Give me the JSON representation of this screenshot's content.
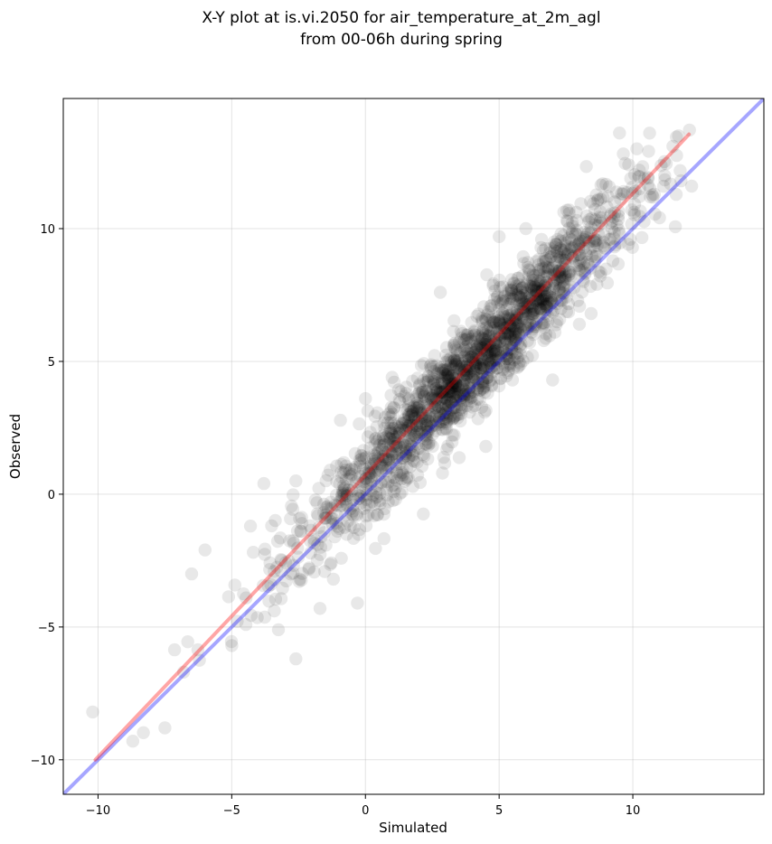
{
  "chart_data": {
    "type": "scatter",
    "title_lines": [
      "X-Y plot at is.vi.2050 for air_temperature_at_2m_agl",
      "from 00-06h during spring"
    ],
    "xlabel": "Simulated",
    "ylabel": "Observed",
    "xlim": [
      -11.3,
      14.9
    ],
    "ylim": [
      -11.3,
      14.9
    ],
    "xticks": [
      -10,
      -5,
      0,
      5,
      10
    ],
    "yticks": [
      -10,
      -5,
      0,
      5,
      10
    ],
    "xtick_labels": [
      "−10",
      "−5",
      "0",
      "5",
      "10"
    ],
    "ytick_labels": [
      "−10",
      "−5",
      "0",
      "5",
      "10"
    ],
    "grid": true,
    "scatter": {
      "color": "#000000",
      "opacity": 0.09,
      "count": 1800,
      "x_range": [
        -10.2,
        12.2
      ],
      "approx_relation": "observed ≈ 1.05 × simulated + 0.6, spread ≈ ±0.9",
      "sample_points": [
        [
          -10.2,
          -8.2
        ],
        [
          -8.7,
          -9.3
        ],
        [
          -7.5,
          -8.8
        ],
        [
          -6.8,
          -6.7
        ],
        [
          -6.5,
          -3.0
        ],
        [
          -6.0,
          -2.1
        ],
        [
          -5.0,
          -5.7
        ],
        [
          -4.3,
          -1.2
        ],
        [
          -3.8,
          0.4
        ],
        [
          -2.6,
          0.5
        ],
        [
          -2.6,
          -6.2
        ],
        [
          -1.7,
          -4.3
        ],
        [
          -1.2,
          -3.2
        ],
        [
          -0.3,
          -4.1
        ],
        [
          0.0,
          3.6
        ],
        [
          1.0,
          4.4
        ],
        [
          2.8,
          7.6
        ],
        [
          4.5,
          1.8
        ],
        [
          5.0,
          9.7
        ],
        [
          5.5,
          4.3
        ],
        [
          6.0,
          10.0
        ],
        [
          7.0,
          4.3
        ],
        [
          8.0,
          6.4
        ],
        [
          9.5,
          13.6
        ],
        [
          9.9,
          9.6
        ],
        [
          11.8,
          11.8
        ],
        [
          12.2,
          11.6
        ],
        [
          11.5,
          13.1
        ]
      ]
    },
    "series": [
      {
        "color": "#0000ff",
        "kind": "1:1 line",
        "x": [
          -11.3,
          14.9
        ],
        "y": [
          -11.3,
          14.9
        ]
      },
      {
        "color": "#ff0000",
        "kind": "regression line",
        "x": [
          -10.1,
          12.1
        ],
        "y": [
          -10.0,
          13.55
        ]
      }
    ]
  }
}
